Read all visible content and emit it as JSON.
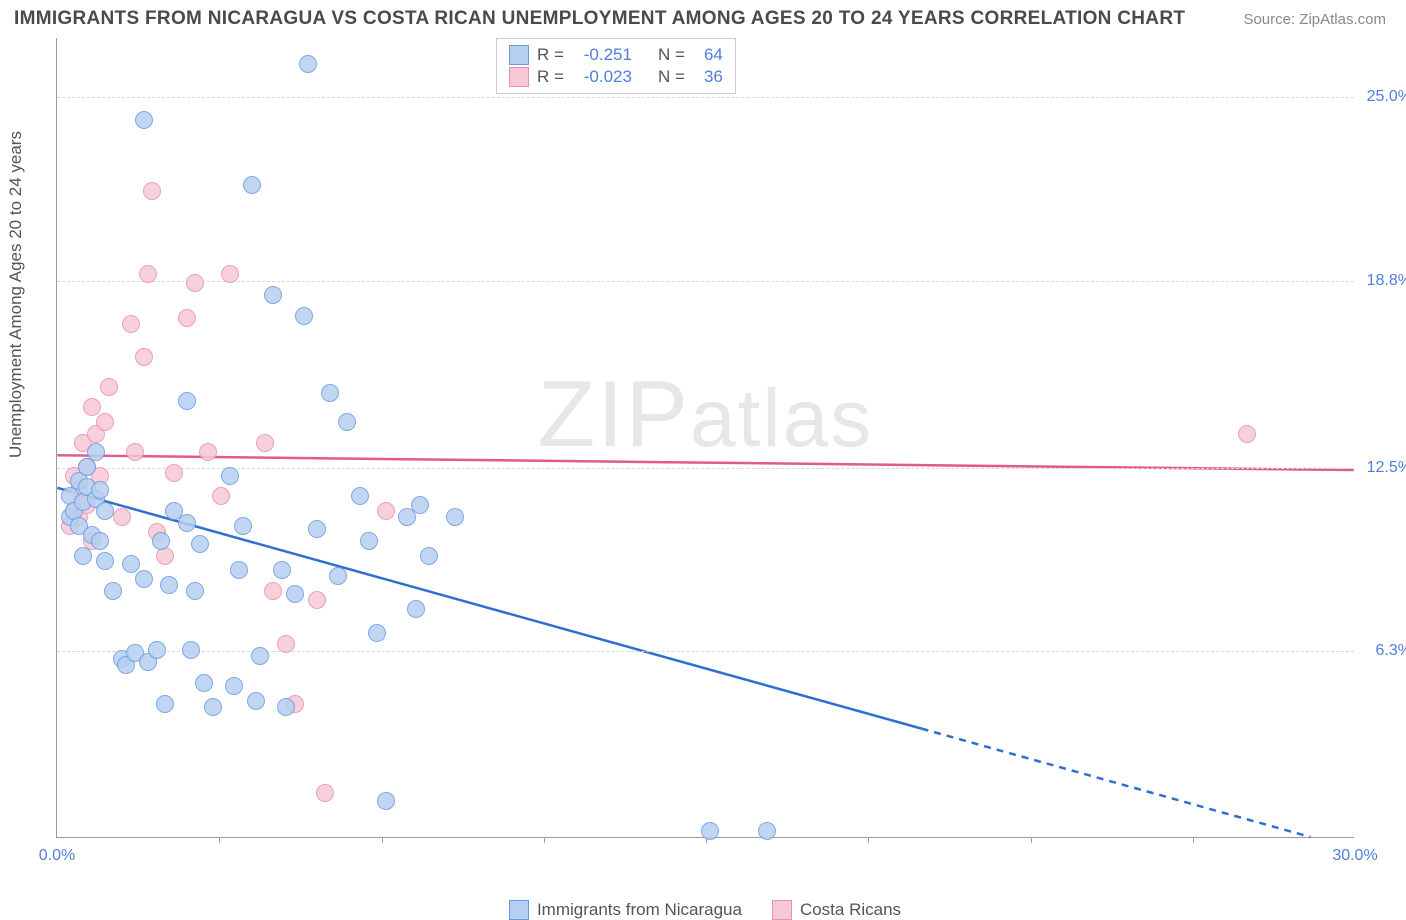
{
  "header": {
    "title": "IMMIGRANTS FROM NICARAGUA VS COSTA RICAN UNEMPLOYMENT AMONG AGES 20 TO 24 YEARS CORRELATION CHART",
    "source": "Source: ZipAtlas.com"
  },
  "watermark": "ZIPatlas",
  "chart": {
    "type": "scatter",
    "y_axis_label": "Unemployment Among Ages 20 to 24 years",
    "x_min": 0.0,
    "x_max": 30.0,
    "y_min": 0.0,
    "y_max": 27.0,
    "x_tick_labels": [
      {
        "v": 0.0,
        "label": "0.0%"
      },
      {
        "v": 30.0,
        "label": "30.0%"
      }
    ],
    "x_tick_marks": [
      3.75,
      7.5,
      11.25,
      15.0,
      18.75,
      22.5,
      26.25
    ],
    "y_ticks": [
      {
        "v": 6.3,
        "label": "6.3%"
      },
      {
        "v": 12.5,
        "label": "12.5%"
      },
      {
        "v": 18.8,
        "label": "18.8%"
      },
      {
        "v": 25.0,
        "label": "25.0%"
      }
    ],
    "background_color": "#ffffff",
    "grid_color": "#d8d8d8",
    "axis_color": "#9a9a9a",
    "tick_label_color": "#4f7fd6",
    "series": {
      "nicaragua": {
        "label": "Immigrants from Nicaragua",
        "fill": "#b6cff0",
        "stroke": "#6a9be0",
        "line_color": "#2f6fd0",
        "r_value": "-0.251",
        "n_value": "64",
        "trend": {
          "y_at_x0": 11.8,
          "y_at_x30": 0.0,
          "x_at_y0": 29.0,
          "solid_until_x": 20.0
        },
        "points": [
          [
            0.3,
            10.8
          ],
          [
            0.3,
            11.5
          ],
          [
            0.4,
            11.0
          ],
          [
            0.5,
            12.0
          ],
          [
            0.5,
            10.5
          ],
          [
            0.6,
            9.5
          ],
          [
            0.6,
            11.3
          ],
          [
            0.7,
            11.8
          ],
          [
            0.7,
            12.5
          ],
          [
            0.8,
            10.2
          ],
          [
            0.9,
            13.0
          ],
          [
            0.9,
            11.4
          ],
          [
            1.0,
            10.0
          ],
          [
            1.0,
            11.7
          ],
          [
            1.1,
            9.3
          ],
          [
            1.1,
            11.0
          ],
          [
            1.3,
            8.3
          ],
          [
            1.5,
            6.0
          ],
          [
            1.6,
            5.8
          ],
          [
            1.7,
            9.2
          ],
          [
            1.8,
            6.2
          ],
          [
            2.0,
            8.7
          ],
          [
            2.0,
            24.2
          ],
          [
            2.1,
            5.9
          ],
          [
            2.3,
            6.3
          ],
          [
            2.4,
            10.0
          ],
          [
            2.5,
            4.5
          ],
          [
            2.6,
            8.5
          ],
          [
            2.7,
            11.0
          ],
          [
            3.0,
            10.6
          ],
          [
            3.0,
            14.7
          ],
          [
            3.1,
            6.3
          ],
          [
            3.2,
            8.3
          ],
          [
            3.3,
            9.9
          ],
          [
            3.4,
            5.2
          ],
          [
            3.6,
            4.4
          ],
          [
            4.0,
            12.2
          ],
          [
            4.1,
            5.1
          ],
          [
            4.2,
            9.0
          ],
          [
            4.3,
            10.5
          ],
          [
            4.5,
            22.0
          ],
          [
            4.6,
            4.6
          ],
          [
            4.7,
            6.1
          ],
          [
            5.0,
            18.3
          ],
          [
            5.2,
            9.0
          ],
          [
            5.3,
            4.4
          ],
          [
            5.5,
            8.2
          ],
          [
            5.7,
            17.6
          ],
          [
            5.8,
            26.1
          ],
          [
            6.0,
            10.4
          ],
          [
            6.3,
            15.0
          ],
          [
            6.5,
            8.8
          ],
          [
            6.7,
            14.0
          ],
          [
            7.0,
            11.5
          ],
          [
            7.2,
            10.0
          ],
          [
            7.4,
            6.9
          ],
          [
            7.6,
            1.2
          ],
          [
            8.1,
            10.8
          ],
          [
            8.3,
            7.7
          ],
          [
            8.4,
            11.2
          ],
          [
            8.6,
            9.5
          ],
          [
            9.2,
            10.8
          ],
          [
            15.1,
            0.2
          ],
          [
            16.4,
            0.2
          ]
        ]
      },
      "costarica": {
        "label": "Costa Ricans",
        "fill": "#f6c8d6",
        "stroke": "#e891ae",
        "line_color": "#e05a8a",
        "r_value": "-0.023",
        "n_value": "36",
        "trend": {
          "y_at_x0": 12.9,
          "y_at_x30": 12.4
        },
        "points": [
          [
            0.3,
            10.5
          ],
          [
            0.4,
            12.2
          ],
          [
            0.4,
            11.0
          ],
          [
            0.5,
            10.8
          ],
          [
            0.5,
            11.7
          ],
          [
            0.6,
            13.3
          ],
          [
            0.7,
            11.2
          ],
          [
            0.7,
            12.5
          ],
          [
            0.8,
            14.5
          ],
          [
            0.8,
            10.0
          ],
          [
            0.9,
            13.6
          ],
          [
            1.0,
            12.2
          ],
          [
            1.1,
            14.0
          ],
          [
            1.2,
            15.2
          ],
          [
            1.5,
            10.8
          ],
          [
            1.7,
            17.3
          ],
          [
            1.8,
            13.0
          ],
          [
            2.0,
            16.2
          ],
          [
            2.1,
            19.0
          ],
          [
            2.2,
            21.8
          ],
          [
            2.3,
            10.3
          ],
          [
            2.5,
            9.5
          ],
          [
            2.7,
            12.3
          ],
          [
            3.0,
            17.5
          ],
          [
            3.2,
            18.7
          ],
          [
            3.5,
            13.0
          ],
          [
            3.8,
            11.5
          ],
          [
            4.0,
            19.0
          ],
          [
            4.8,
            13.3
          ],
          [
            5.0,
            8.3
          ],
          [
            5.3,
            6.5
          ],
          [
            5.5,
            4.5
          ],
          [
            6.0,
            8.0
          ],
          [
            6.2,
            1.5
          ],
          [
            7.6,
            11.0
          ],
          [
            27.5,
            13.6
          ]
        ]
      }
    },
    "legend_top": {
      "r_prefix": "R =",
      "n_prefix": "N ="
    },
    "legend_bottom": {
      "series_order": [
        "nicaragua",
        "costarica"
      ]
    }
  }
}
